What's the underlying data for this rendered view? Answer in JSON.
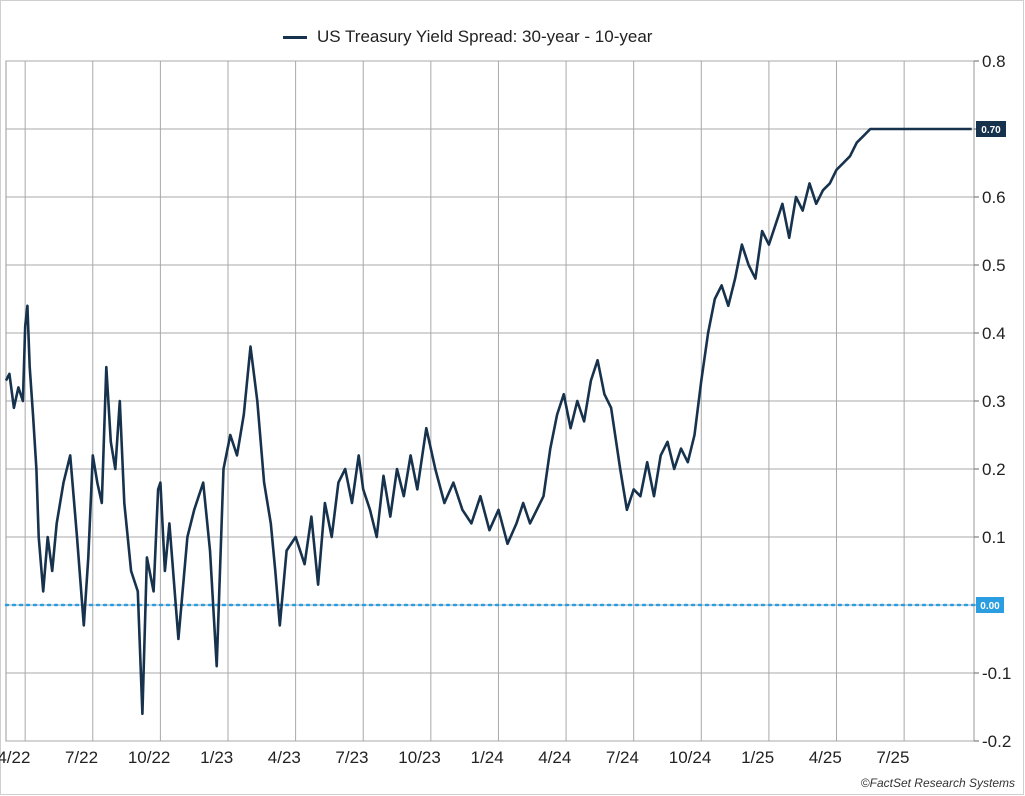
{
  "chart_data": {
    "type": "line",
    "legend_position": "top-center",
    "grid": true,
    "y_axis_position": "right",
    "ylim": [
      -0.2,
      0.8
    ],
    "y_ticks": [
      {
        "value": 0.8,
        "label": "0.8"
      },
      {
        "value": 0.7,
        "label": ""
      },
      {
        "value": 0.6,
        "label": "0.6"
      },
      {
        "value": 0.5,
        "label": "0.5"
      },
      {
        "value": 0.4,
        "label": "0.4"
      },
      {
        "value": 0.3,
        "label": "0.3"
      },
      {
        "value": 0.2,
        "label": "0.2"
      },
      {
        "value": 0.1,
        "label": "0.1"
      },
      {
        "value": 0.0,
        "label": ""
      },
      {
        "value": -0.1,
        "label": "-0.1"
      },
      {
        "value": -0.2,
        "label": "-0.2"
      }
    ],
    "x_tick_labels": [
      "4/22",
      "7/22",
      "10/22",
      "1/23",
      "4/23",
      "7/23",
      "10/23",
      "1/24",
      "4/24",
      "7/24",
      "10/24",
      "1/25",
      "4/25",
      "7/25"
    ],
    "x_tick_index": [
      3,
      6,
      9,
      12,
      15,
      18,
      21,
      24,
      27,
      30,
      33,
      36,
      39,
      42
    ],
    "x_range_index": [
      2.15,
      45.1
    ],
    "series": [
      {
        "name": "US Treasury Yield Spread: 30-year - 10-year",
        "color": "#17324d",
        "last_value_label": "0.70",
        "x_index": [
          2.15,
          2.3,
          2.5,
          2.7,
          2.9,
          3.0,
          3.1,
          3.2,
          3.35,
          3.5,
          3.6,
          3.8,
          4.0,
          4.2,
          4.4,
          4.7,
          5.0,
          5.3,
          5.6,
          5.8,
          6.0,
          6.2,
          6.4,
          6.6,
          6.8,
          7.0,
          7.2,
          7.4,
          7.7,
          8.0,
          8.2,
          8.4,
          8.7,
          8.9,
          9.0,
          9.2,
          9.4,
          9.8,
          10.2,
          10.5,
          10.9,
          11.2,
          11.5,
          11.8,
          12.1,
          12.4,
          12.7,
          13.0,
          13.3,
          13.6,
          13.9,
          14.1,
          14.3,
          14.6,
          15.0,
          15.4,
          15.7,
          16.0,
          16.3,
          16.6,
          16.9,
          17.2,
          17.5,
          17.8,
          18.0,
          18.3,
          18.6,
          18.9,
          19.2,
          19.5,
          19.8,
          20.1,
          20.4,
          20.8,
          21.2,
          21.6,
          22.0,
          22.4,
          22.8,
          23.2,
          23.6,
          24.0,
          24.4,
          24.8,
          25.1,
          25.4,
          25.7,
          26.0,
          26.3,
          26.6,
          26.9,
          27.2,
          27.5,
          27.8,
          28.1,
          28.4,
          28.7,
          29.0,
          29.4,
          29.7,
          30.0,
          30.3,
          30.6,
          30.9,
          31.2,
          31.5,
          31.8,
          32.1,
          32.4,
          32.7,
          33.0,
          33.3,
          33.6,
          33.9,
          34.2,
          34.5,
          34.8,
          35.1,
          35.4,
          35.7,
          36.0,
          36.3,
          36.6,
          36.9,
          37.2,
          37.5,
          37.8,
          38.1,
          38.4,
          38.7,
          39.0,
          39.3,
          39.6,
          39.9,
          40.2,
          40.5,
          40.8,
          41.1,
          41.4,
          41.7,
          42.0,
          42.3,
          42.6,
          42.9,
          43.2,
          43.5,
          43.8,
          44.0,
          44.2,
          44.4,
          44.6,
          44.8,
          45.0
        ],
        "values": [
          0.33,
          0.34,
          0.29,
          0.32,
          0.3,
          0.41,
          0.44,
          0.35,
          0.28,
          0.2,
          0.1,
          0.02,
          0.1,
          0.05,
          0.12,
          0.18,
          0.22,
          0.1,
          -0.03,
          0.07,
          0.22,
          0.18,
          0.15,
          0.35,
          0.24,
          0.2,
          0.3,
          0.15,
          0.05,
          0.02,
          -0.16,
          0.07,
          0.02,
          0.17,
          0.18,
          0.05,
          0.12,
          -0.05,
          0.1,
          0.14,
          0.18,
          0.08,
          -0.09,
          0.2,
          0.25,
          0.22,
          0.28,
          0.38,
          0.3,
          0.18,
          0.12,
          0.05,
          -0.03,
          0.08,
          0.1,
          0.06,
          0.13,
          0.03,
          0.15,
          0.1,
          0.18,
          0.2,
          0.15,
          0.22,
          0.17,
          0.14,
          0.1,
          0.19,
          0.13,
          0.2,
          0.16,
          0.22,
          0.17,
          0.26,
          0.2,
          0.15,
          0.18,
          0.14,
          0.12,
          0.16,
          0.11,
          0.14,
          0.09,
          0.12,
          0.15,
          0.12,
          0.14,
          0.16,
          0.23,
          0.28,
          0.31,
          0.26,
          0.3,
          0.27,
          0.33,
          0.36,
          0.31,
          0.29,
          0.2,
          0.14,
          0.17,
          0.16,
          0.21,
          0.16,
          0.22,
          0.24,
          0.2,
          0.23,
          0.21,
          0.25,
          0.33,
          0.4,
          0.45,
          0.47,
          0.44,
          0.48,
          0.53,
          0.5,
          0.48,
          0.55,
          0.53,
          0.56,
          0.59,
          0.54,
          0.6,
          0.58,
          0.62,
          0.59,
          0.61,
          0.62,
          0.64,
          0.65,
          0.66,
          0.68,
          0.69,
          0.7,
          0.7,
          0.7,
          0.7,
          0.7,
          0.7,
          0.7,
          0.7,
          0.7,
          0.7,
          0.7,
          0.7,
          0.7,
          0.7,
          0.7,
          0.7,
          0.7,
          0.7
        ]
      }
    ],
    "reference_line": {
      "value": 0.0,
      "label": "0.00",
      "color": "#2a9ee0"
    }
  },
  "legend": {
    "label": "US Treasury Yield Spread: 30-year - 10-year"
  },
  "copyright": "©FactSet Research Systems"
}
